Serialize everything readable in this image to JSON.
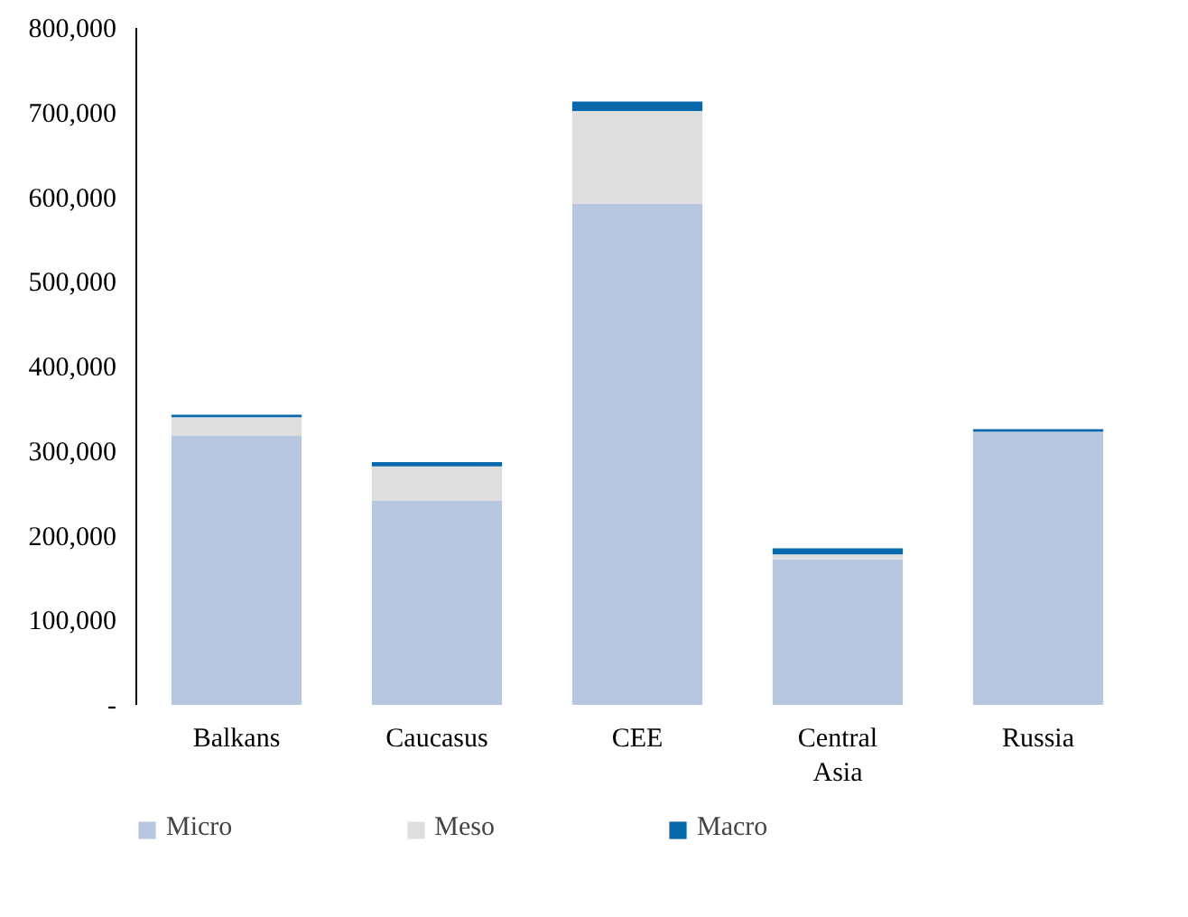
{
  "chart_data": {
    "type": "bar",
    "stacked": true,
    "categories": [
      "Balkans",
      "Caucasus",
      "CEE",
      "Central\nAsia",
      "Russia"
    ],
    "series": [
      {
        "name": "Micro",
        "color": "#b8c7e0",
        "values": [
          318000,
          241000,
          592000,
          172000,
          323000
        ]
      },
      {
        "name": "Meso",
        "color": "#dedede",
        "values": [
          22000,
          41000,
          110000,
          6000,
          0
        ]
      },
      {
        "name": "Macro",
        "color": "#0868ac",
        "values": [
          3000,
          5000,
          11000,
          7000,
          3000
        ]
      }
    ],
    "ylim": [
      0,
      800000
    ],
    "yticks": [
      {
        "value": 0,
        "label": "-"
      },
      {
        "value": 100000,
        "label": "100,000"
      },
      {
        "value": 200000,
        "label": "200,000"
      },
      {
        "value": 300000,
        "label": "300,000"
      },
      {
        "value": 400000,
        "label": "400,000"
      },
      {
        "value": 500000,
        "label": "500,000"
      },
      {
        "value": 600000,
        "label": "600,000"
      },
      {
        "value": 700000,
        "label": "700,000"
      },
      {
        "value": 800000,
        "label": "800,000"
      }
    ],
    "grid": false,
    "legend": "bottom"
  }
}
